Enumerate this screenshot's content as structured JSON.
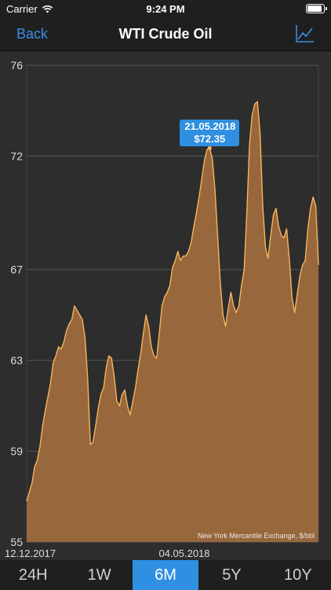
{
  "status_bar": {
    "carrier": "Carrier",
    "time": "9:24 PM"
  },
  "nav": {
    "back_label": "Back",
    "title": "WTI Crude Oil",
    "icon": "line-chart-icon"
  },
  "tooltip": {
    "date": "21.05.2018",
    "price": "$72.35"
  },
  "source_note": "New York Mercantile Exchange, $/bbl",
  "tabs": [
    {
      "label": "24H",
      "active": false
    },
    {
      "label": "1W",
      "active": false
    },
    {
      "label": "6M",
      "active": true
    },
    {
      "label": "5Y",
      "active": false
    },
    {
      "label": "10Y",
      "active": false
    }
  ],
  "colors": {
    "accent": "#2f8fe0",
    "line": "#f5b55f",
    "fill": "#9e6a3c"
  },
  "chart_data": {
    "type": "area",
    "ylim": [
      55,
      76
    ],
    "y_ticks": [
      "76",
      "72",
      "67",
      "63",
      "59",
      "55"
    ],
    "x_tick_labels": [
      "12.12.2017",
      "04.05.2018"
    ],
    "values": [
      56.8,
      57.2,
      57.6,
      58.3,
      58.6,
      59.2,
      60.1,
      60.8,
      61.4,
      62.0,
      62.9,
      63.2,
      63.6,
      63.5,
      63.8,
      64.3,
      64.6,
      64.8,
      65.4,
      65.2,
      65.0,
      64.8,
      64.0,
      62.2,
      59.3,
      59.4,
      60.1,
      60.9,
      61.5,
      61.8,
      62.7,
      63.2,
      63.1,
      62.3,
      61.2,
      61.0,
      61.5,
      61.7,
      61.0,
      60.6,
      61.2,
      61.8,
      62.6,
      63.3,
      64.2,
      65.0,
      64.5,
      63.6,
      63.2,
      63.1,
      64.2,
      65.4,
      65.8,
      66.0,
      66.3,
      67.1,
      67.4,
      67.8,
      67.4,
      67.6,
      67.6,
      67.8,
      68.2,
      68.9,
      69.5,
      70.2,
      71.0,
      71.8,
      72.3,
      72.35,
      71.9,
      70.5,
      68.5,
      66.4,
      65.0,
      64.5,
      65.3,
      66.0,
      65.4,
      65.1,
      65.4,
      66.3,
      67.0,
      69.5,
      72.5,
      73.8,
      74.3,
      74.4,
      73.0,
      69.8,
      68.0,
      67.5,
      68.5,
      69.4,
      69.7,
      68.9,
      68.5,
      68.4,
      68.8,
      67.5,
      65.8,
      65.1,
      65.9,
      66.7,
      67.2,
      67.4,
      68.8,
      69.7,
      70.2,
      69.8,
      67.2
    ],
    "selected_index": 69
  }
}
